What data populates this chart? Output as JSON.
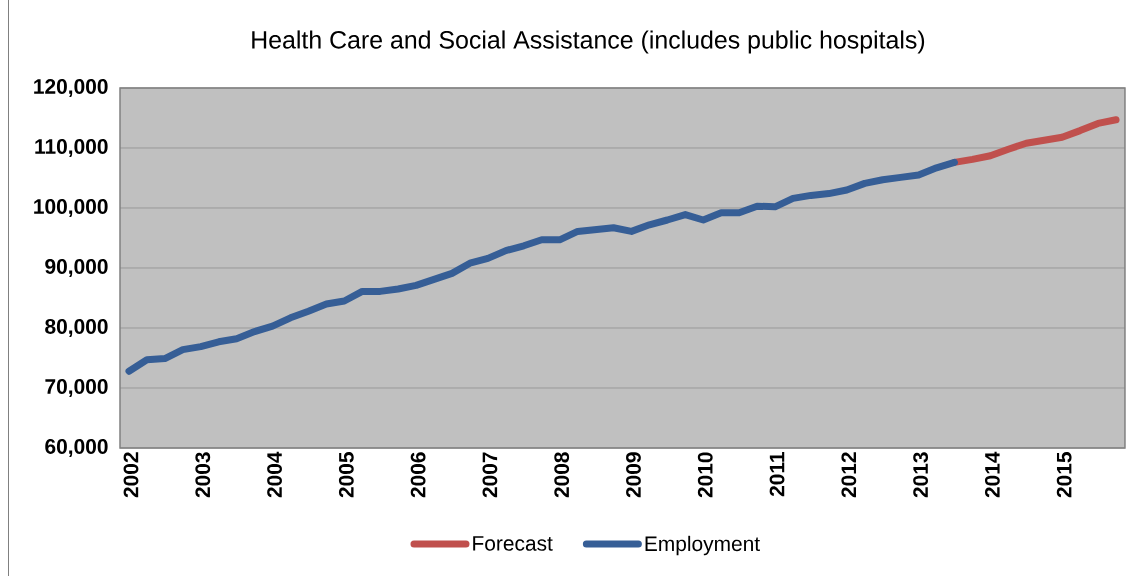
{
  "chart_data": {
    "type": "line",
    "title": "Health Care and Social Assistance (includes public hospitals)",
    "categories": [
      "2002",
      null,
      null,
      null,
      "2003",
      null,
      null,
      null,
      "2004",
      null,
      null,
      null,
      "2005",
      null,
      null,
      null,
      "2006",
      null,
      null,
      null,
      "2007",
      null,
      null,
      null,
      "2008",
      null,
      null,
      null,
      "2009",
      null,
      null,
      null,
      "2010",
      null,
      null,
      null,
      "2011",
      null,
      null,
      null,
      "2012",
      null,
      null,
      null,
      "2013",
      null,
      null,
      null,
      "2014",
      null,
      null,
      null,
      "2015",
      null,
      null,
      null
    ],
    "series": [
      {
        "name": "Forecast",
        "color": "#C0504D",
        "values": [
          null,
          null,
          null,
          null,
          null,
          null,
          null,
          null,
          null,
          null,
          null,
          null,
          null,
          null,
          null,
          null,
          null,
          null,
          null,
          null,
          null,
          null,
          null,
          null,
          null,
          null,
          null,
          null,
          null,
          null,
          null,
          null,
          null,
          null,
          null,
          null,
          null,
          null,
          null,
          null,
          null,
          null,
          null,
          null,
          null,
          null,
          107600,
          108100,
          108700,
          109800,
          110800,
          111300,
          111800,
          112900,
          114100,
          114700
        ]
      },
      {
        "name": "Employment",
        "color": "#365E96",
        "values": [
          72800,
          74700,
          74900,
          76400,
          76900,
          77700,
          78200,
          79400,
          80300,
          81700,
          82800,
          84000,
          84500,
          86100,
          86100,
          86500,
          87100,
          88100,
          89100,
          90800,
          91600,
          92900,
          93700,
          94700,
          94700,
          96100,
          96400,
          96700,
          96100,
          97200,
          98000,
          98900,
          98000,
          99200,
          99200,
          100300,
          100200,
          101600,
          102100,
          102400,
          103000,
          104100,
          104700,
          105100,
          105500,
          106700,
          107600,
          null,
          null,
          null,
          null,
          null,
          null,
          null,
          null,
          null
        ]
      }
    ],
    "ylim": [
      60000,
      120000
    ],
    "yticks": [
      {
        "value": 60000,
        "label": "60,000"
      },
      {
        "value": 70000,
        "label": "70,000"
      },
      {
        "value": 80000,
        "label": "80,000"
      },
      {
        "value": 90000,
        "label": "90,000"
      },
      {
        "value": 100000,
        "label": "100,000"
      },
      {
        "value": 110000,
        "label": "110,000"
      },
      {
        "value": 120000,
        "label": "120,000"
      }
    ],
    "grid": "y",
    "legend": "bottom",
    "marker": "none",
    "line_style": "solid"
  }
}
